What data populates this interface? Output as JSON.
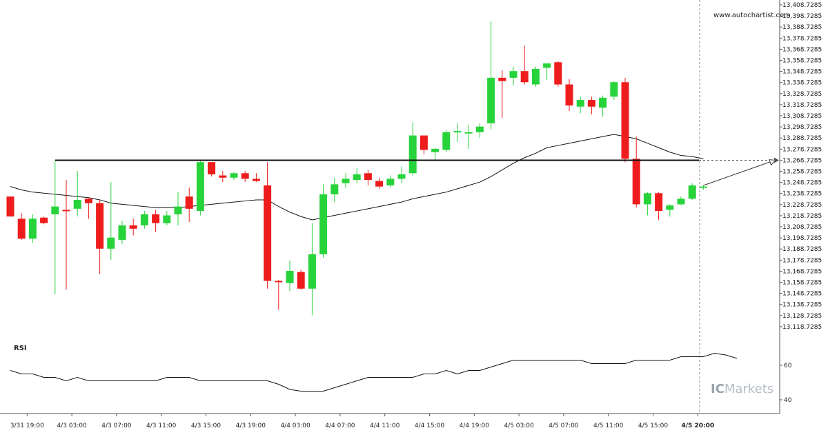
{
  "chart_data": [
    {
      "type": "candlestick",
      "watermark": "www.autochartist.com",
      "brand": {
        "prefix": "IC",
        "suffix": "Markets"
      },
      "ylim": [
        13113.7285,
        13408.7285
      ],
      "y_ticks": [
        "13,408.7285",
        "13,398.7285",
        "13,388.7285",
        "13,378.7285",
        "13,368.7285",
        "13,358.7285",
        "13,348.7285",
        "13,338.7285",
        "13,328.7285",
        "13,318.7285",
        "13,308.7285",
        "13,298.7285",
        "13,288.7285",
        "13,278.7285",
        "13,268.7285",
        "13,258.7285",
        "13,248.7285",
        "13,238.7285",
        "13,228.7285",
        "13,218.7285",
        "13,208.7285",
        "13,198.7285",
        "13,188.7285",
        "13,178.7285",
        "13,168.7285",
        "13,158.7285",
        "13,148.7285",
        "13,138.7285",
        "13,128.7285",
        "13,118.7285"
      ],
      "x_ticks": [
        {
          "label": "3/31 19:00",
          "index": 1.5
        },
        {
          "label": "4/3 03:00",
          "index": 5.5
        },
        {
          "label": "4/3 07:00",
          "index": 9.5
        },
        {
          "label": "4/3 11:00",
          "index": 13.5
        },
        {
          "label": "4/3 15:00",
          "index": 17.5
        },
        {
          "label": "4/3 19:00",
          "index": 21.5
        },
        {
          "label": "4/4 03:00",
          "index": 25.5
        },
        {
          "label": "4/4 07:00",
          "index": 29.5
        },
        {
          "label": "4/4 11:00",
          "index": 33.5
        },
        {
          "label": "4/4 15:00",
          "index": 37.5
        },
        {
          "label": "4/4 19:00",
          "index": 41.5
        },
        {
          "label": "4/5 03:00",
          "index": 45.5
        },
        {
          "label": "4/5 07:00",
          "index": 49.5
        },
        {
          "label": "4/5 11:00",
          "index": 53.5
        },
        {
          "label": "4/5 15:00",
          "index": 57.5
        },
        {
          "label": "4/5 20:00",
          "index": 61.5,
          "bold": true
        }
      ],
      "candles": [
        {
          "o": 13236,
          "h": 13236,
          "l": 13218,
          "c": 13218
        },
        {
          "o": 13216,
          "h": 13221,
          "l": 13197,
          "c": 13198
        },
        {
          "o": 13198,
          "h": 13220,
          "l": 13194,
          "c": 13216
        },
        {
          "o": 13217,
          "h": 13218,
          "l": 13211,
          "c": 13212
        },
        {
          "o": 13220,
          "h": 13268,
          "l": 13148,
          "c": 13227
        },
        {
          "o": 13224,
          "h": 13251,
          "l": 13152,
          "c": 13223
        },
        {
          "o": 13225,
          "h": 13259,
          "l": 13218,
          "c": 13233
        },
        {
          "o": 13234,
          "h": 13235,
          "l": 13216,
          "c": 13230
        },
        {
          "o": 13230,
          "h": 13233,
          "l": 13166,
          "c": 13189
        },
        {
          "o": 13189,
          "h": 13249,
          "l": 13179,
          "c": 13199
        },
        {
          "o": 13197,
          "h": 13214,
          "l": 13193,
          "c": 13210
        },
        {
          "o": 13210,
          "h": 13216,
          "l": 13201,
          "c": 13207
        },
        {
          "o": 13210,
          "h": 13223,
          "l": 13207,
          "c": 13220
        },
        {
          "o": 13220,
          "h": 13224,
          "l": 13204,
          "c": 13212
        },
        {
          "o": 13212,
          "h": 13223,
          "l": 13210,
          "c": 13219
        },
        {
          "o": 13220,
          "h": 13240,
          "l": 13210,
          "c": 13227
        },
        {
          "o": 13236,
          "h": 13244,
          "l": 13213,
          "c": 13225
        },
        {
          "o": 13223,
          "h": 13268,
          "l": 13219,
          "c": 13267
        },
        {
          "o": 13267,
          "h": 13267,
          "l": 13254,
          "c": 13256
        },
        {
          "o": 13255,
          "h": 13259,
          "l": 13249,
          "c": 13253
        },
        {
          "o": 13253,
          "h": 13258,
          "l": 13251,
          "c": 13257
        },
        {
          "o": 13257,
          "h": 13259,
          "l": 13249,
          "c": 13252
        },
        {
          "o": 13252,
          "h": 13257,
          "l": 13249,
          "c": 13250
        },
        {
          "o": 13246,
          "h": 13267,
          "l": 13153,
          "c": 13160
        },
        {
          "o": 13160,
          "h": 13161,
          "l": 13134,
          "c": 13159
        },
        {
          "o": 13158,
          "h": 13178,
          "l": 13151,
          "c": 13169
        },
        {
          "o": 13168,
          "h": 13170,
          "l": 13152,
          "c": 13153
        },
        {
          "o": 13153,
          "h": 13212,
          "l": 13129,
          "c": 13184
        },
        {
          "o": 13184,
          "h": 13247,
          "l": 13181,
          "c": 13238
        },
        {
          "o": 13238,
          "h": 13253,
          "l": 13231,
          "c": 13247
        },
        {
          "o": 13248,
          "h": 13257,
          "l": 13244,
          "c": 13252
        },
        {
          "o": 13251,
          "h": 13262,
          "l": 13248,
          "c": 13256
        },
        {
          "o": 13257,
          "h": 13260,
          "l": 13246,
          "c": 13251
        },
        {
          "o": 13250,
          "h": 13253,
          "l": 13243,
          "c": 13245
        },
        {
          "o": 13246,
          "h": 13255,
          "l": 13244,
          "c": 13252
        },
        {
          "o": 13252,
          "h": 13263,
          "l": 13248,
          "c": 13256
        },
        {
          "o": 13257,
          "h": 13303,
          "l": 13255,
          "c": 13291
        },
        {
          "o": 13291,
          "h": 13291,
          "l": 13274,
          "c": 13278
        },
        {
          "o": 13276,
          "h": 13280,
          "l": 13268,
          "c": 13279
        },
        {
          "o": 13278,
          "h": 13296,
          "l": 13276,
          "c": 13294
        },
        {
          "o": 13294,
          "h": 13302,
          "l": 13285,
          "c": 13295
        },
        {
          "o": 13293,
          "h": 13300,
          "l": 13279,
          "c": 13294
        },
        {
          "o": 13294,
          "h": 13302,
          "l": 13289,
          "c": 13299
        },
        {
          "o": 13302,
          "h": 13394,
          "l": 13296,
          "c": 13343
        },
        {
          "o": 13343,
          "h": 13350,
          "l": 13307,
          "c": 13340
        },
        {
          "o": 13343,
          "h": 13353,
          "l": 13336,
          "c": 13349
        },
        {
          "o": 13349,
          "h": 13372,
          "l": 13337,
          "c": 13339
        },
        {
          "o": 13337,
          "h": 13353,
          "l": 13335,
          "c": 13351
        },
        {
          "o": 13352,
          "h": 13356,
          "l": 13341,
          "c": 13356
        },
        {
          "o": 13357,
          "h": 13358,
          "l": 13335,
          "c": 13337
        },
        {
          "o": 13337,
          "h": 13342,
          "l": 13313,
          "c": 13318
        },
        {
          "o": 13317,
          "h": 13326,
          "l": 13311,
          "c": 13323
        },
        {
          "o": 13323,
          "h": 13326,
          "l": 13310,
          "c": 13317
        },
        {
          "o": 13316,
          "h": 13327,
          "l": 13308,
          "c": 13325
        },
        {
          "o": 13326,
          "h": 13340,
          "l": 13323,
          "c": 13339
        },
        {
          "o": 13339,
          "h": 13343,
          "l": 13267,
          "c": 13270
        },
        {
          "o": 13270,
          "h": 13290,
          "l": 13226,
          "c": 13229
        },
        {
          "o": 13229,
          "h": 13240,
          "l": 13219,
          "c": 13239
        },
        {
          "o": 13239,
          "h": 13240,
          "l": 13215,
          "c": 13223
        },
        {
          "o": 13224,
          "h": 13229,
          "l": 13218,
          "c": 13228
        },
        {
          "o": 13229,
          "h": 13236,
          "l": 13228,
          "c": 13234
        },
        {
          "o": 13234,
          "h": 13248,
          "l": 13233,
          "c": 13246
        },
        {
          "o": 13245,
          "h": 13246,
          "l": 13242,
          "c": 13245
        }
      ],
      "moving_average": [
        13245,
        13242,
        13240,
        13239,
        13238,
        13237,
        13236,
        13235,
        13233,
        13230,
        13229,
        13228,
        13227,
        13226,
        13226,
        13226,
        13227,
        13228,
        13229,
        13230,
        13231,
        13232,
        13233,
        13233,
        13227,
        13222,
        13218,
        13215,
        13217,
        13219,
        13221,
        13223,
        13225,
        13227,
        13229,
        13231,
        13234,
        13236,
        13238,
        13240,
        13243,
        13246,
        13249,
        13254,
        13260,
        13266,
        13271,
        13275,
        13280,
        13282,
        13284,
        13286,
        13288,
        13290,
        13292,
        13290,
        13288,
        13284,
        13280,
        13276,
        13273,
        13272,
        13270
      ],
      "support_level": 13268.7,
      "forecast": {
        "from": {
          "index": 62,
          "value": 13246
        },
        "to": {
          "index": 68.5,
          "value": 13268.7
        }
      },
      "rsi": {
        "label": "RSI",
        "ticks": [
          60,
          40
        ],
        "ylim": [
          32,
          72
        ],
        "values": [
          57,
          55,
          55,
          53,
          53,
          51,
          53,
          51,
          51,
          51,
          51,
          51,
          51,
          51,
          53,
          53,
          53,
          51,
          51,
          51,
          51,
          51,
          51,
          51,
          49,
          46,
          45,
          45,
          45,
          47,
          49,
          51,
          53,
          53,
          53,
          53,
          53,
          55,
          55,
          57,
          55,
          57,
          57,
          59,
          61,
          63,
          63,
          63,
          63,
          63,
          63,
          63,
          61,
          61,
          61,
          61,
          63,
          63,
          63,
          63,
          65,
          65,
          65,
          67,
          66,
          64
        ]
      }
    }
  ]
}
